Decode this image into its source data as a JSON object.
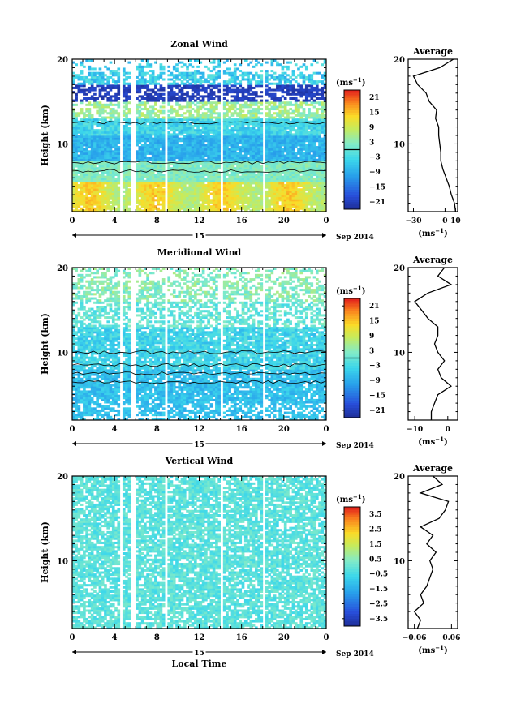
{
  "chart_data": [
    {
      "type": "heatmap",
      "title": "Zonal Wind",
      "ylabel": "Height (km)",
      "ylim": [
        2,
        20
      ],
      "yticks": [
        "10",
        "20"
      ],
      "xticks": [
        "0",
        "4",
        "8",
        "12",
        "16",
        "20",
        "0"
      ],
      "xlim": [
        0,
        24
      ],
      "date_day": "15",
      "date_label": "Sep 2014",
      "colorbar": {
        "unit": "(ms",
        "unit_exp": "−1",
        "unit_close": ")",
        "ticks": [
          "21",
          "15",
          "9",
          "3",
          "−3",
          "−9",
          "−15",
          "−21"
        ],
        "range": [
          -24,
          24
        ]
      },
      "profile": {
        "title": "Average",
        "yticks": [
          "10",
          "20"
        ],
        "xticks": [
          "−30",
          "0",
          "10"
        ],
        "xlim": [
          -35,
          12
        ],
        "unit": "(ms",
        "unit_exp": "−1",
        "unit_close": ")",
        "heights": [
          2,
          3,
          4,
          5,
          6,
          7,
          8,
          9,
          10,
          11,
          12,
          13,
          14,
          15,
          16,
          17,
          18,
          19,
          20
        ],
        "values": [
          10,
          9,
          6,
          4,
          1,
          -2,
          -4,
          -4,
          -5,
          -6,
          -6,
          -9,
          -8,
          -15,
          -18,
          -26,
          -30,
          -5,
          8
        ]
      },
      "colors": {
        "low": "#1e2fa0",
        "high": "#e31a1c"
      }
    },
    {
      "type": "heatmap",
      "title": "Meridional Wind",
      "ylabel": "Height (km)",
      "ylim": [
        2,
        20
      ],
      "yticks": [
        "10",
        "20"
      ],
      "xticks": [
        "0",
        "4",
        "8",
        "12",
        "16",
        "20",
        "0"
      ],
      "xlim": [
        0,
        24
      ],
      "date_day": "15",
      "date_label": "Sep 2014",
      "colorbar": {
        "unit": "(ms",
        "unit_exp": "−1",
        "unit_close": ")",
        "ticks": [
          "21",
          "15",
          "9",
          "3",
          "−3",
          "−9",
          "−15",
          "−21"
        ],
        "range": [
          -24,
          24
        ]
      },
      "profile": {
        "title": "Average",
        "yticks": [
          "10",
          "20"
        ],
        "xticks": [
          "−10",
          "0"
        ],
        "xlim": [
          -12,
          3
        ],
        "unit": "(ms",
        "unit_exp": "−1",
        "unit_close": ")",
        "heights": [
          2,
          3,
          4,
          5,
          6,
          7,
          8,
          9,
          10,
          11,
          12,
          13,
          14,
          15,
          16,
          17,
          18,
          19,
          20
        ],
        "values": [
          -5,
          -5,
          -4,
          -3,
          1,
          -2,
          -3,
          -1,
          -3,
          -4,
          -3,
          -3,
          -6,
          -8,
          -10,
          -6,
          1,
          -3,
          -1
        ]
      },
      "colors": {
        "low": "#1e2fa0",
        "high": "#e31a1c"
      }
    },
    {
      "type": "heatmap",
      "title": "Vertical Wind",
      "ylabel": "Height (km)",
      "xlabel": "Local Time",
      "ylim": [
        2,
        20
      ],
      "yticks": [
        "10",
        "20"
      ],
      "xticks": [
        "0",
        "4",
        "8",
        "12",
        "16",
        "20",
        "0"
      ],
      "xlim": [
        0,
        24
      ],
      "date_day": "15",
      "date_label": "Sep 2014",
      "colorbar": {
        "unit": "(ms",
        "unit_exp": "−1",
        "unit_close": ")",
        "ticks": [
          "3.5",
          "2.5",
          "1.5",
          "0.5",
          "−0.5",
          "−1.5",
          "−2.5",
          "−3.5"
        ],
        "range": [
          -4,
          4
        ]
      },
      "profile": {
        "title": "Average",
        "yticks": [
          "10",
          "20"
        ],
        "xticks": [
          "−0.06",
          "0.06"
        ],
        "xlim": [
          -0.08,
          0.08
        ],
        "unit": "(ms",
        "unit_exp": "−1",
        "unit_close": ")",
        "heights": [
          2,
          3,
          4,
          5,
          6,
          7,
          8,
          9,
          10,
          11,
          12,
          13,
          14,
          15,
          16,
          17,
          18,
          19,
          20
        ],
        "values": [
          -0.05,
          -0.04,
          -0.06,
          -0.03,
          -0.04,
          -0.02,
          -0.01,
          0.0,
          -0.01,
          0.01,
          -0.02,
          0.0,
          -0.04,
          0.02,
          0.04,
          0.05,
          -0.04,
          0.03,
          0.0
        ]
      },
      "colors": {
        "low": "#1e2fa0",
        "high": "#e31a1c"
      }
    }
  ]
}
